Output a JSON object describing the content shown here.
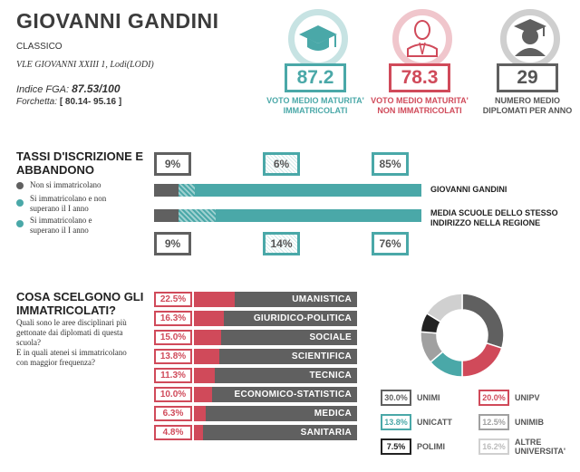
{
  "school": {
    "name": "GIOVANNI GANDINI",
    "type": "CLASSICO",
    "address": "VLE GIOVANNI XXIII 1, Lodi(LODI)",
    "fga_label": "Indice FGA:",
    "fga_value": "87.53/100",
    "fork_label": "Forchetta:",
    "fork_value": "[ 80.14- 95.16 ]"
  },
  "stats": [
    {
      "value": "87.2",
      "label1": "VOTO MEDIO MATURITA'",
      "label2": "IMMATRICOLATI",
      "color": "#4aa8a8",
      "icon": "graduation-cap-icon"
    },
    {
      "value": "78.3",
      "label1": "VOTO MEDIO MATURITA'",
      "label2": "NON IMMATRICOLATI",
      "color": "#d04a5a",
      "icon": "person-icon"
    },
    {
      "value": "29",
      "label1": "NUMERO MEDIO",
      "label2": "DIPLOMATI PER ANNO",
      "color": "#606060",
      "icon": "graduate-icon"
    }
  ],
  "enrollment": {
    "title1": "TASSI D'ISCRIZIONE E",
    "title2": "ABBANDONO",
    "legend": [
      {
        "line1": "Non si immatricolano",
        "line2": "",
        "color": "#606060"
      },
      {
        "line1": "Si immatricolano e non",
        "line2": "superano il I anno",
        "color": "#4aa8a8"
      },
      {
        "line1": "Si immatricolano e",
        "line2": "superano il I anno",
        "color": "#4aa8a8"
      }
    ],
    "school_pcts": [
      "9%",
      "6%",
      "85%"
    ],
    "region_pcts": [
      "9%",
      "14%",
      "76%"
    ],
    "school_label": "GIOVANNI GANDINI",
    "region_label1": "MEDIA SCUOLE DELLO STESSO",
    "region_label2": "INDIRIZZO NELLA REGIONE",
    "colors": {
      "gray": "#606060",
      "teal": "#4aa8a8",
      "hatch": "#9ed0d0"
    }
  },
  "choices": {
    "title1": "COSA SCELGONO GLI",
    "title2": "IMMATRICOLATI?",
    "q1": "Quali sono le aree disciplinari più",
    "q2": "gettonate dai diplomati di questa",
    "q3": "scuola?",
    "q4": "E in quali atenei si immatricolano",
    "q5": "con maggior frequenza?"
  },
  "chart_data": [
    {
      "type": "bar",
      "categories": [
        "UMANISTICA",
        "GIURIDICO-POLITICA",
        "SOCIALE",
        "SCIENTIFICA",
        "TECNICA",
        "ECONOMICO-STATISTICA",
        "MEDICA",
        "SANITARIA"
      ],
      "values": [
        22.5,
        16.3,
        15.0,
        13.8,
        11.3,
        10.0,
        6.3,
        4.8
      ],
      "labels": [
        "22.5%",
        "16.3%",
        "15.0%",
        "13.8%",
        "11.3%",
        "10.0%",
        "6.3%",
        "4.8%"
      ],
      "colors": {
        "value": "#d04a5a",
        "rest": "#606060"
      }
    },
    {
      "type": "pie",
      "labels": [
        "UNIMI",
        "UNIPV",
        "UNICATT",
        "UNIMIB",
        "POLIMI",
        "ALTRE UNIVERSITA'"
      ],
      "values": [
        30.0,
        20.0,
        13.8,
        12.5,
        7.5,
        16.2
      ],
      "value_labels": [
        "30.0%",
        "20.0%",
        "13.8%",
        "12.5%",
        "7.5%",
        "16.2%"
      ],
      "colors": [
        "#606060",
        "#d04a5a",
        "#4aa8a8",
        "#a0a0a0",
        "#222222",
        "#d0d0d0"
      ]
    }
  ]
}
